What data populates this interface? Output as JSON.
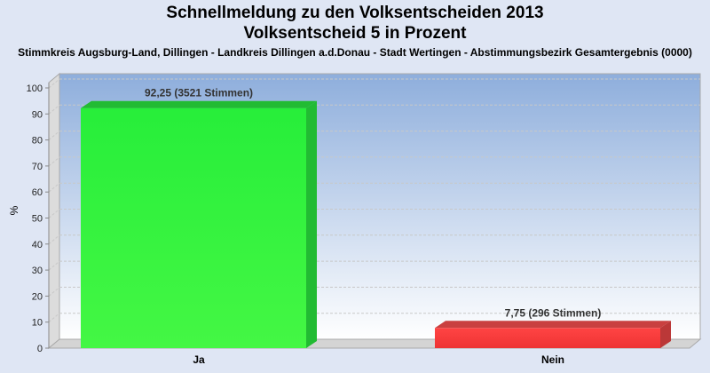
{
  "chart_data": {
    "type": "bar",
    "title": "Schnellmeldung zu den Volksentscheiden 2013",
    "title2": "Volksentscheid 5 in Prozent",
    "subtitle": "Stimmkreis Augsburg-Land, Dillingen - Landkreis Dillingen a.d.Donau - Stadt Wertingen - Abstimmungsbezirk Gesamtergebnis (0000)",
    "xlabel": "",
    "ylabel": "%",
    "ylim": [
      0,
      100
    ],
    "yticks": [
      0,
      10,
      20,
      30,
      40,
      50,
      60,
      70,
      80,
      90,
      100
    ],
    "categories": [
      "Ja",
      "Nein"
    ],
    "values": [
      92.25,
      7.75
    ],
    "data_labels": [
      "92,25 (3521 Stimmen)",
      "7,75 (296 Stimmen)"
    ],
    "colors": [
      "#33ee33",
      "#ee3333"
    ],
    "grid": true
  }
}
